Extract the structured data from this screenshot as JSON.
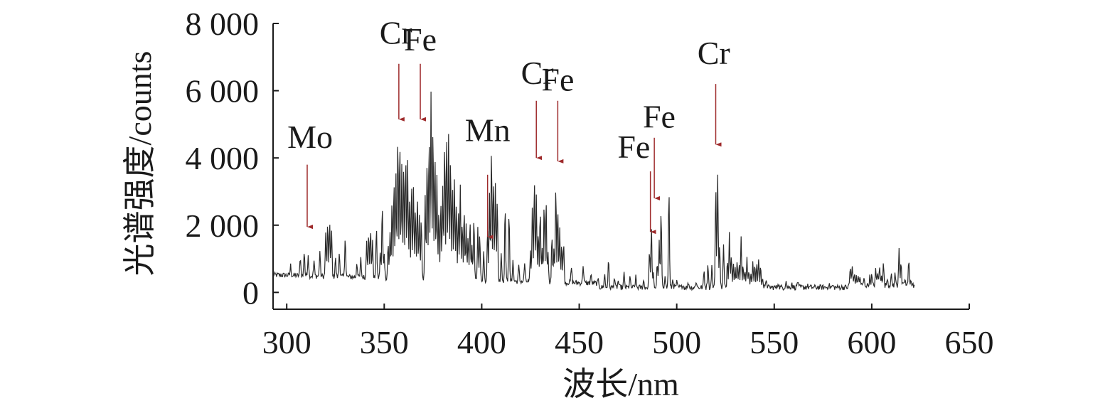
{
  "chart_data": {
    "type": "line",
    "xlabel": "波长/nm",
    "ylabel": "光谱强度/counts",
    "xlim": [
      293,
      650
    ],
    "ylim": [
      -500,
      8000
    ],
    "xticks": [
      {
        "value": 300,
        "label": "300"
      },
      {
        "value": 350,
        "label": "350"
      },
      {
        "value": 400,
        "label": "400"
      },
      {
        "value": 450,
        "label": "450"
      },
      {
        "value": 500,
        "label": "500"
      },
      {
        "value": 550,
        "label": "550"
      },
      {
        "value": 600,
        "label": "600"
      },
      {
        "value": 650,
        "label": "650"
      }
    ],
    "yticks": [
      {
        "value": 0,
        "label": "0"
      },
      {
        "value": 2000,
        "label": "2 000"
      },
      {
        "value": 4000,
        "label": "4 000"
      },
      {
        "value": 6000,
        "label": "6 000"
      },
      {
        "value": 8000,
        "label": "8 000"
      }
    ],
    "grid": false,
    "spectrum": {
      "x_range": [
        293,
        622
      ],
      "baseline": 150,
      "color": "#2a2a2a",
      "peaks": [
        [
          302,
          450
        ],
        [
          307,
          700
        ],
        [
          309,
          900
        ],
        [
          311,
          800
        ],
        [
          314,
          600
        ],
        [
          317,
          900
        ],
        [
          320,
          1400
        ],
        [
          321,
          1700
        ],
        [
          322,
          1800
        ],
        [
          323,
          1500
        ],
        [
          325,
          700
        ],
        [
          327,
          900
        ],
        [
          330,
          1400
        ],
        [
          336,
          600
        ],
        [
          338,
          700
        ],
        [
          341,
          1300
        ],
        [
          342,
          1500
        ],
        [
          343,
          1600
        ],
        [
          344,
          1200
        ],
        [
          346,
          1700
        ],
        [
          348,
          900
        ],
        [
          349,
          2300
        ],
        [
          350,
          900
        ],
        [
          352,
          1200
        ],
        [
          353,
          1500
        ],
        [
          354,
          2500
        ],
        [
          355,
          3000
        ],
        [
          356,
          3200
        ],
        [
          357,
          4400
        ],
        [
          358,
          4300
        ],
        [
          359,
          3600
        ],
        [
          360,
          3500
        ],
        [
          361,
          3800
        ],
        [
          362,
          3700
        ],
        [
          363,
          2600
        ],
        [
          364,
          3000
        ],
        [
          365,
          2900
        ],
        [
          366,
          2200
        ],
        [
          367,
          2700
        ],
        [
          368,
          2000
        ],
        [
          369,
          1900
        ],
        [
          371,
          2600
        ],
        [
          372,
          3800
        ],
        [
          373,
          4400
        ],
        [
          374,
          5700
        ],
        [
          375,
          4800
        ],
        [
          376,
          3900
        ],
        [
          377,
          3200
        ],
        [
          378,
          2200
        ],
        [
          379,
          2500
        ],
        [
          380,
          3000
        ],
        [
          381,
          4200
        ],
        [
          382,
          4500
        ],
        [
          383,
          4400
        ],
        [
          384,
          3800
        ],
        [
          385,
          3000
        ],
        [
          386,
          3200
        ],
        [
          387,
          2500
        ],
        [
          388,
          2200
        ],
        [
          389,
          2900
        ],
        [
          390,
          1800
        ],
        [
          391,
          2300
        ],
        [
          392,
          1800
        ],
        [
          393,
          1500
        ],
        [
          394,
          2000
        ],
        [
          395,
          1200
        ],
        [
          396,
          2000
        ],
        [
          398,
          1700
        ],
        [
          399,
          1500
        ],
        [
          401,
          1000
        ],
        [
          403,
          1800
        ],
        [
          404,
          2700
        ],
        [
          405,
          4100
        ],
        [
          406,
          3200
        ],
        [
          407,
          3100
        ],
        [
          408,
          2600
        ],
        [
          410,
          1000
        ],
        [
          412,
          2400
        ],
        [
          414,
          2200
        ],
        [
          416,
          800
        ],
        [
          419,
          600
        ],
        [
          422,
          700
        ],
        [
          425,
          1000
        ],
        [
          426,
          2500
        ],
        [
          427,
          3200
        ],
        [
          428,
          2800
        ],
        [
          429,
          1700
        ],
        [
          430,
          2300
        ],
        [
          431,
          1200
        ],
        [
          432,
          2500
        ],
        [
          433,
          2600
        ],
        [
          434,
          1000
        ],
        [
          436,
          1600
        ],
        [
          437,
          1100
        ],
        [
          438,
          3000
        ],
        [
          439,
          2400
        ],
        [
          440,
          1800
        ],
        [
          441,
          1300
        ],
        [
          442,
          1400
        ],
        [
          446,
          600
        ],
        [
          452,
          700
        ],
        [
          456,
          400
        ],
        [
          460,
          300
        ],
        [
          463,
          550
        ],
        [
          465,
          1000
        ],
        [
          468,
          450
        ],
        [
          470,
          350
        ],
        [
          473,
          550
        ],
        [
          476,
          450
        ],
        [
          479,
          450
        ],
        [
          483,
          350
        ],
        [
          486,
          1300
        ],
        [
          487,
          2000
        ],
        [
          488,
          550
        ],
        [
          490,
          900
        ],
        [
          491,
          1500
        ],
        [
          492,
          2400
        ],
        [
          494,
          550
        ],
        [
          496,
          3100
        ],
        [
          498,
          400
        ],
        [
          500,
          300
        ],
        [
          503,
          250
        ],
        [
          506,
          300
        ],
        [
          510,
          350
        ],
        [
          514,
          650
        ],
        [
          516,
          900
        ],
        [
          518,
          800
        ],
        [
          520,
          3200
        ],
        [
          521,
          3500
        ],
        [
          522,
          1500
        ],
        [
          524,
          1400
        ],
        [
          526,
          1000
        ],
        [
          527,
          1800
        ],
        [
          528,
          1200
        ],
        [
          529,
          900
        ],
        [
          530,
          700
        ],
        [
          531,
          1000
        ],
        [
          532,
          900
        ],
        [
          533,
          1600
        ],
        [
          534,
          900
        ],
        [
          535,
          700
        ],
        [
          536,
          1000
        ],
        [
          537,
          650
        ],
        [
          538,
          600
        ],
        [
          539,
          900
        ],
        [
          540,
          800
        ],
        [
          541,
          850
        ],
        [
          542,
          1000
        ],
        [
          543,
          750
        ],
        [
          544,
          500
        ],
        [
          546,
          400
        ],
        [
          552,
          300
        ],
        [
          556,
          350
        ],
        [
          559,
          300
        ],
        [
          562,
          350
        ],
        [
          567,
          200
        ],
        [
          578,
          250
        ],
        [
          580,
          200
        ],
        [
          589,
          700
        ],
        [
          590,
          700
        ],
        [
          591,
          500
        ],
        [
          592,
          400
        ],
        [
          593,
          450
        ],
        [
          594,
          400
        ],
        [
          596,
          350
        ],
        [
          599,
          400
        ],
        [
          600,
          450
        ],
        [
          602,
          600
        ],
        [
          603,
          550
        ],
        [
          604,
          700
        ],
        [
          605,
          500
        ],
        [
          606,
          800
        ],
        [
          608,
          400
        ],
        [
          610,
          450
        ],
        [
          612,
          500
        ],
        [
          614,
          1300
        ],
        [
          615,
          800
        ],
        [
          617,
          350
        ],
        [
          619,
          900
        ],
        [
          620,
          300
        ]
      ]
    },
    "annotations": [
      {
        "text": "Mo",
        "label_x": 312,
        "label_y": 4300,
        "arrow_x": 310.5,
        "arrow_from": 3800,
        "arrow_to": 1950
      },
      {
        "text": "Cr",
        "label_x": 356,
        "label_y": 7400,
        "arrow_x": 357.5,
        "arrow_from": 6800,
        "arrow_to": 5150
      },
      {
        "text": "Fe",
        "label_x": 368.5,
        "label_y": 7200,
        "arrow_x": 368.5,
        "arrow_from": 6800,
        "arrow_to": 5150
      },
      {
        "text": "Mn",
        "label_x": 403,
        "label_y": 4500,
        "arrow_x": 403,
        "arrow_from": 3500,
        "arrow_to": 1650
      },
      {
        "text": "Cr",
        "label_x": 428.5,
        "label_y": 6200,
        "arrow_x": 428,
        "arrow_from": 5700,
        "arrow_to": 4000
      },
      {
        "text": "Fe",
        "label_x": 439,
        "label_y": 6000,
        "arrow_x": 439,
        "arrow_from": 5700,
        "arrow_to": 3900
      },
      {
        "text": "Fe",
        "label_x": 491,
        "label_y": 4900,
        "arrow_x": 488.5,
        "arrow_from": 4600,
        "arrow_to": 2800
      },
      {
        "text": "Fe",
        "label_x": 478,
        "label_y": 4000,
        "arrow_x": 486.5,
        "arrow_from": 3600,
        "arrow_to": 1800
      },
      {
        "text": "Cr",
        "label_x": 519,
        "label_y": 6800,
        "arrow_x": 520,
        "arrow_from": 6200,
        "arrow_to": 4400
      }
    ],
    "arrow_color": "#9e2a2b"
  }
}
